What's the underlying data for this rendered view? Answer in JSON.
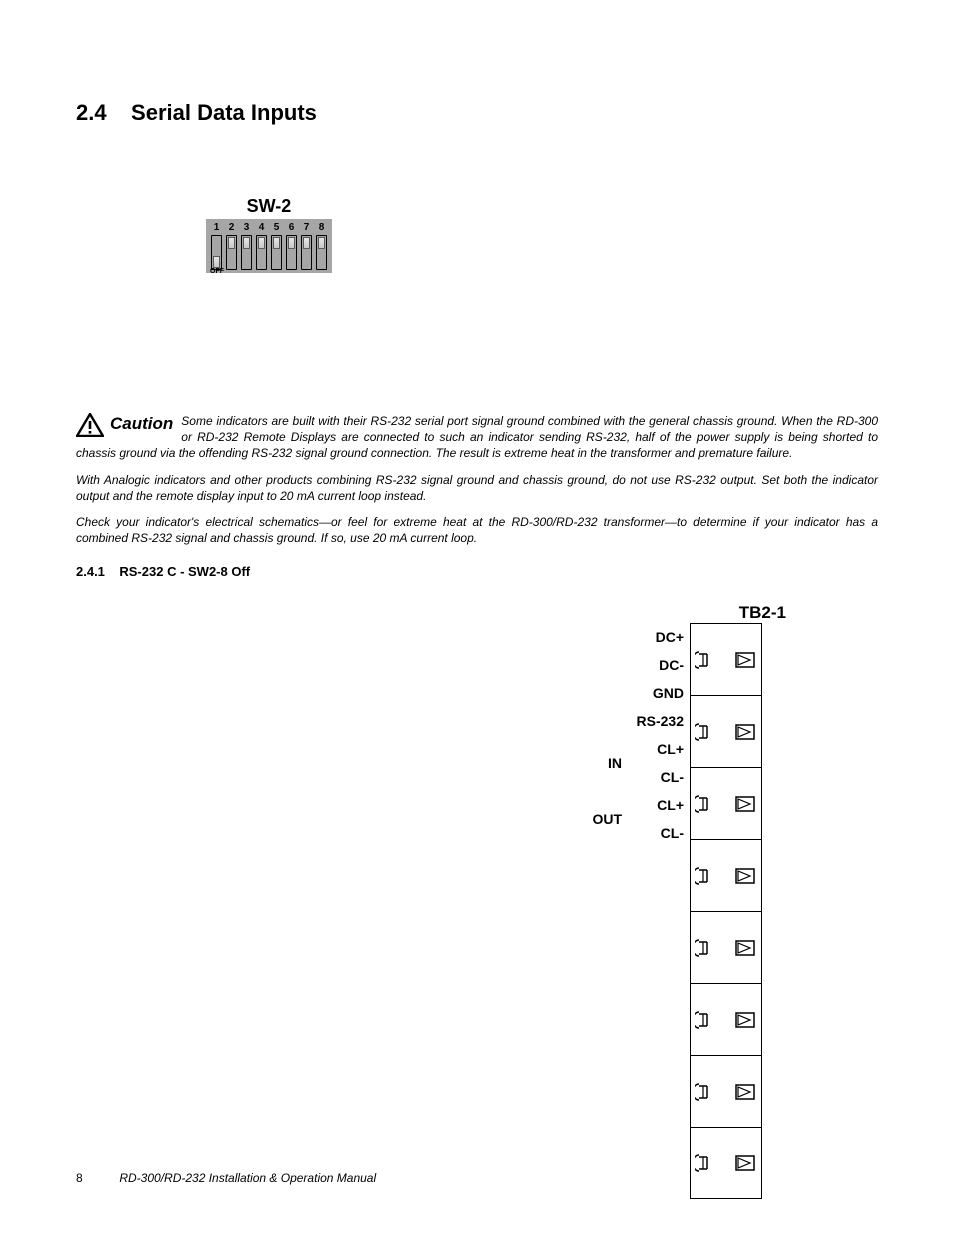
{
  "section": {
    "number": "2.4",
    "title": "Serial Data Inputs"
  },
  "sw2": {
    "label": "SW-2",
    "numbers": [
      "1",
      "2",
      "3",
      "4",
      "5",
      "6",
      "7",
      "8"
    ],
    "positions": [
      "bottom",
      "top",
      "top",
      "top",
      "top",
      "top",
      "top",
      "top"
    ],
    "off_label": "OFF"
  },
  "caution": {
    "word": "Caution",
    "para1": "Some indicators are built with their RS-232 serial port signal ground combined with the general chassis ground. When the  RD-300 or RD-232 Remote Displays are connected to such an indicator sending RS-232, half of the power supply is being shorted to chassis ground via the offending RS-232 signal ground connection. The result is extreme heat in the transformer and premature failure.",
    "para2": "With Analogic indicators and other products combining RS-232 signal ground and chassis ground, do not use RS-232 output. Set both the indicator output and the remote display input to 20 mA current loop instead.",
    "para3": "Check your indicator's electrical schematics—or feel for extreme heat at the RD-300/RD-232  transformer—to determine if your indicator has a combined RS-232 signal and chassis ground. If so, use 20 mA current loop."
  },
  "subsection": {
    "number": "2.4.1",
    "title": "RS-232 C - SW2-8 Off"
  },
  "tb": {
    "title": "TB2-1",
    "pins": [
      "DC+",
      "DC-",
      "GND",
      "RS-232",
      "CL+",
      "CL-",
      "CL+",
      "CL-"
    ],
    "groups": {
      "in_label": "IN",
      "out_label": "OUT"
    }
  },
  "footer": {
    "page": "8",
    "title": "RD-300/RD-232 Installation & Operation Manual"
  },
  "colors": {
    "dip_body": "#a6a6a6",
    "text": "#000000",
    "bg": "#ffffff"
  }
}
